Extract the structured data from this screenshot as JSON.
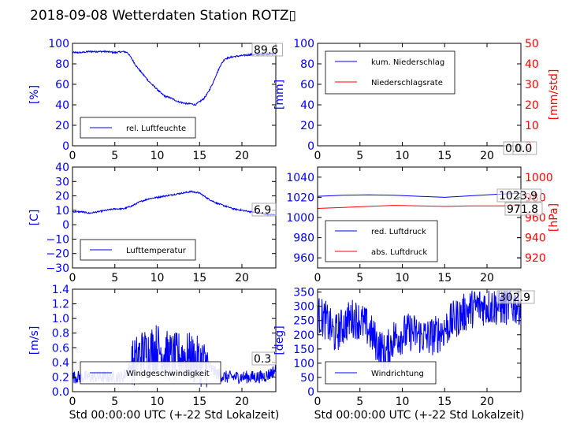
{
  "page": {
    "title": "2018-09-08 Wetterdaten Station ROTZ▯"
  },
  "colors": {
    "blue": "#0000ff",
    "red": "#ff0000",
    "black": "#000000"
  },
  "chart_data": [
    {
      "id": "humidity",
      "type": "line",
      "ylabel": "[%]",
      "ylabel_color": "#0000ff",
      "ylim": [
        0,
        100
      ],
      "yticks": [
        0,
        20,
        40,
        60,
        80,
        100
      ],
      "yticklabels": [
        "0",
        "20",
        "40",
        "60",
        "80",
        "100"
      ],
      "xlim": [
        0,
        24
      ],
      "xticks": [
        0,
        5,
        10,
        15,
        20
      ],
      "xticklabels": [
        "0",
        "5",
        "10",
        "15",
        "20"
      ],
      "xlabel": "",
      "series": [
        {
          "name": "rel. Luftfeuchte",
          "color": "#0000ff",
          "noise": 0.8,
          "x": [
            0,
            1,
            2,
            3,
            4,
            5,
            6,
            6.5,
            7,
            7.5,
            8,
            8.5,
            9,
            9.5,
            10,
            10.5,
            11,
            11.5,
            12,
            12.5,
            13,
            13.5,
            14,
            14.5,
            15,
            15.5,
            16,
            16.5,
            17,
            17.5,
            18,
            19,
            20,
            21,
            22,
            23,
            24
          ],
          "y": [
            91,
            91,
            92,
            92,
            92,
            91,
            92,
            91,
            85,
            78,
            73,
            68,
            63,
            59,
            55,
            51,
            48,
            47,
            45,
            43,
            42,
            41,
            41,
            40,
            43,
            46,
            52,
            60,
            70,
            79,
            85,
            87,
            88,
            89,
            89,
            89.6,
            89.6
          ]
        }
      ],
      "annotation": "89.6",
      "legend": "lower-center"
    },
    {
      "id": "precip",
      "type": "line",
      "ylabel": "[mm]",
      "ylabel_color": "#0000ff",
      "ylim": [
        0,
        100
      ],
      "yticks": [
        0,
        20,
        40,
        60,
        80,
        100
      ],
      "yticklabels": [
        "0",
        "20",
        "40",
        "60",
        "80",
        "100"
      ],
      "y2label": "[mm/std]",
      "y2label_color": "#ff0000",
      "y2lim": [
        0,
        50
      ],
      "y2ticks": [
        0,
        10,
        20,
        30,
        40,
        50
      ],
      "y2ticklabels": [
        "0",
        "10",
        "20",
        "30",
        "40",
        "50"
      ],
      "xlim": [
        0,
        24
      ],
      "xticks": [
        0,
        5,
        10,
        15,
        20
      ],
      "xticklabels": [
        "0",
        "5",
        "10",
        "15",
        "20"
      ],
      "xlabel": "",
      "series": [
        {
          "name": "kum. Niederschlag",
          "color": "#0000ff",
          "axis": "left",
          "noise": 0,
          "x": [
            0,
            24
          ],
          "y": [
            0,
            0
          ]
        },
        {
          "name": "Niederschlagsrate",
          "color": "#ff0000",
          "axis": "right",
          "noise": 0,
          "x": [
            0,
            24
          ],
          "y": [
            0,
            0
          ]
        }
      ],
      "annotations": [
        "0.0",
        "0.0"
      ],
      "legend": "upper-left"
    },
    {
      "id": "temperature",
      "type": "line",
      "ylabel": "[C]",
      "ylabel_color": "#0000ff",
      "ylim": [
        -30,
        40
      ],
      "yticks": [
        -30,
        -20,
        -10,
        0,
        10,
        20,
        30,
        40
      ],
      "yticklabels": [
        "−30",
        "−20",
        "−10",
        "0",
        "10",
        "20",
        "30",
        "40"
      ],
      "xlim": [
        0,
        24
      ],
      "xticks": [
        0,
        5,
        10,
        15,
        20
      ],
      "xticklabels": [
        "0",
        "5",
        "10",
        "15",
        "20"
      ],
      "xlabel": "",
      "series": [
        {
          "name": "Lufttemperatur",
          "color": "#0000ff",
          "noise": 0.5,
          "x": [
            0,
            1,
            2,
            3,
            4,
            5,
            6,
            7,
            8,
            9,
            10,
            11,
            12,
            13,
            14,
            15,
            16,
            17,
            18,
            19,
            20,
            21,
            22,
            23,
            24
          ],
          "y": [
            9,
            9,
            8,
            9,
            10,
            11,
            11,
            13,
            16,
            18,
            19,
            20,
            21,
            22,
            23,
            22,
            18,
            15,
            13,
            11,
            10,
            9,
            8,
            7,
            6.9
          ]
        }
      ],
      "annotation": "6.9",
      "legend": "lower-center"
    },
    {
      "id": "pressure",
      "type": "line",
      "ylabel": "",
      "ylabel_color": "#0000ff",
      "ylim": [
        950,
        1050
      ],
      "yticks": [
        960,
        980,
        1000,
        1020,
        1040
      ],
      "yticklabels": [
        "960",
        "980",
        "1000",
        "1020",
        "1040"
      ],
      "y2label": "[hPa]",
      "y2label_color": "#ff0000",
      "y2lim": [
        910,
        1010
      ],
      "y2ticks": [
        920,
        940,
        960,
        980,
        1000
      ],
      "y2ticklabels": [
        "920",
        "940",
        "960",
        "980",
        "1000"
      ],
      "xlim": [
        0,
        24
      ],
      "xticks": [
        0,
        5,
        10,
        15,
        20
      ],
      "xticklabels": [
        "0",
        "5",
        "10",
        "15",
        "20"
      ],
      "xlabel": "",
      "series": [
        {
          "name": "red. Luftdruck",
          "color": "#0000ff",
          "axis": "left",
          "noise": 0,
          "x": [
            0,
            3,
            6,
            9,
            12,
            15,
            18,
            21,
            24
          ],
          "y": [
            1021,
            1022,
            1022.5,
            1022,
            1021,
            1020,
            1021.5,
            1023,
            1023.9
          ]
        },
        {
          "name": "abs. Luftdruck",
          "color": "#ff0000",
          "axis": "right",
          "noise": 0,
          "x": [
            0,
            3,
            6,
            9,
            12,
            15,
            18,
            21,
            24
          ],
          "y": [
            969,
            970,
            971,
            972,
            971.5,
            971,
            971.5,
            971.5,
            971.8
          ]
        }
      ],
      "annotations": [
        "1023.9",
        "971.8"
      ],
      "legend": "lower-left"
    },
    {
      "id": "windspeed",
      "type": "line",
      "ylabel": "[m/s]",
      "ylabel_color": "#0000ff",
      "ylim": [
        0,
        1.4
      ],
      "yticks": [
        0,
        0.2,
        0.4,
        0.6,
        0.8,
        1.0,
        1.2,
        1.4
      ],
      "yticklabels": [
        "0.0",
        "0.2",
        "0.4",
        "0.6",
        "0.8",
        "1.0",
        "1.2",
        "1.4"
      ],
      "xlim": [
        0,
        24
      ],
      "xticks": [
        0,
        5,
        10,
        15,
        20
      ],
      "xticklabels": [
        "0",
        "5",
        "10",
        "15",
        "20"
      ],
      "xlabel": "Std 00:00:00 UTC (+-22 Std Lokalzeit)",
      "series": [
        {
          "name": "Windgeschwindigkeit",
          "color": "#0000ff",
          "noise": 0.22,
          "x": [
            0,
            2,
            4,
            6,
            6.5,
            7,
            8,
            9,
            10,
            11,
            12,
            13,
            14,
            15,
            16,
            17,
            18,
            19,
            20,
            21,
            22,
            23,
            24
          ],
          "y": [
            0.2,
            0.2,
            0.2,
            0.2,
            0.3,
            0.35,
            0.5,
            0.55,
            0.6,
            0.5,
            0.45,
            0.5,
            0.45,
            0.4,
            0.35,
            0.25,
            0.2,
            0.2,
            0.2,
            0.2,
            0.2,
            0.22,
            0.3
          ]
        }
      ],
      "annotation": "0.3",
      "legend": "lower-center"
    },
    {
      "id": "winddir",
      "type": "line",
      "ylabel": "[deg]",
      "ylabel_color": "#0000ff",
      "ylim": [
        0,
        360
      ],
      "yticks": [
        0,
        50,
        100,
        150,
        200,
        250,
        300,
        350
      ],
      "yticklabels": [
        "0",
        "50",
        "100",
        "150",
        "200",
        "250",
        "300",
        "350"
      ],
      "xlim": [
        0,
        24
      ],
      "xticks": [
        0,
        5,
        10,
        15,
        20
      ],
      "xticklabels": [
        "0",
        "5",
        "10",
        "15",
        "20"
      ],
      "xlabel": "Std 00:00:00 UTC (+-22 Std Lokalzeit)",
      "series": [
        {
          "name": "Windrichtung",
          "color": "#0000ff",
          "noise": 70,
          "x": [
            0,
            1,
            2,
            3,
            4,
            5,
            6,
            7,
            8,
            9,
            10,
            11,
            12,
            13,
            14,
            15,
            16,
            17,
            18,
            19,
            20,
            21,
            22,
            23,
            24
          ],
          "y": [
            270,
            250,
            200,
            230,
            260,
            250,
            220,
            170,
            130,
            190,
            200,
            210,
            200,
            190,
            200,
            220,
            250,
            270,
            290,
            300,
            300,
            300,
            300,
            303,
            302.9
          ]
        }
      ],
      "annotation": "302.9",
      "legend": "lower-left"
    }
  ]
}
